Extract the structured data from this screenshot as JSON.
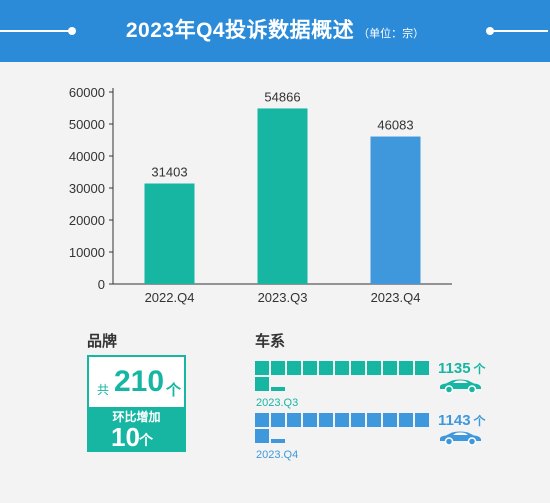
{
  "header": {
    "title": "2023年Q4投诉数据概述",
    "unit_note": "（单位：宗）"
  },
  "chart_data": {
    "type": "bar",
    "categories": [
      "2022.Q4",
      "2023.Q3",
      "2023.Q4"
    ],
    "values": [
      31403,
      54866,
      46083
    ],
    "value_labels": [
      "31403",
      "54866",
      "46083"
    ],
    "colors": [
      "#17b6a3",
      "#17b6a3",
      "#3f98db"
    ],
    "ylim": [
      0,
      60000
    ],
    "yticks": [
      "0",
      "10000",
      "20000",
      "30000",
      "40000",
      "50000",
      "60000"
    ],
    "grid": false
  },
  "brand": {
    "label": "品牌",
    "total_prefix": "共",
    "total_value": "210",
    "total_unit": "个",
    "growth_label": "环比增加",
    "growth_value": "10",
    "growth_unit": "个"
  },
  "series": {
    "label": "车系",
    "rows": [
      {
        "period": "2023.Q3",
        "count": "1135",
        "unit": "个",
        "color": "#17b6a3",
        "icon": "car-icon"
      },
      {
        "period": "2023.Q4",
        "count": "1143",
        "unit": "个",
        "color": "#3f98db",
        "icon": "car-icon"
      }
    ]
  }
}
